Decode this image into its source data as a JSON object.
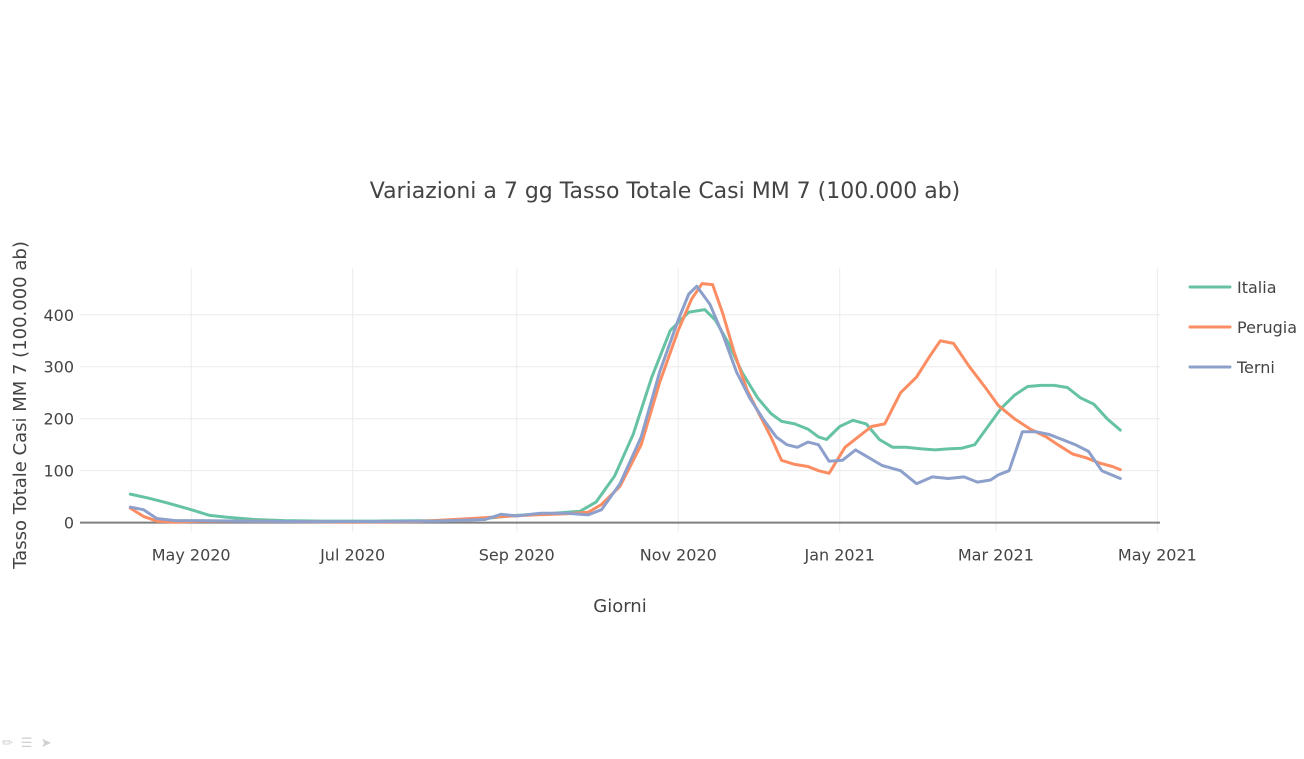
{
  "chart_data": {
    "type": "line",
    "title": "Variazioni a 7 gg Tasso Totale Casi MM 7 (100.000 ab)",
    "xlabel": "Giorni",
    "ylabel": "Tasso Totale Casi MM 7 (100.000 ab)",
    "xlim": [
      "2020-03-20",
      "2021-05-02"
    ],
    "ylim": [
      -18,
      490
    ],
    "grid": true,
    "legend_position": "right",
    "x_ticks": [
      {
        "date": "2020-05-01",
        "label": "May 2020"
      },
      {
        "date": "2020-07-01",
        "label": "Jul 2020"
      },
      {
        "date": "2020-09-01",
        "label": "Sep 2020"
      },
      {
        "date": "2020-11-01",
        "label": "Nov 2020"
      },
      {
        "date": "2021-01-01",
        "label": "Jan 2021"
      },
      {
        "date": "2021-03-01",
        "label": "Mar 2021"
      },
      {
        "date": "2021-05-01",
        "label": "May 2021"
      }
    ],
    "y_ticks": [
      {
        "value": 0,
        "label": "0"
      },
      {
        "value": 100,
        "label": "100"
      },
      {
        "value": 200,
        "label": "200"
      },
      {
        "value": 300,
        "label": "300"
      },
      {
        "value": 400,
        "label": "400"
      }
    ],
    "series": [
      {
        "name": "Italia",
        "color": "#66c2a5",
        "x": [
          "2020-04-08",
          "2020-04-15",
          "2020-04-22",
          "2020-05-01",
          "2020-05-08",
          "2020-05-15",
          "2020-05-25",
          "2020-06-05",
          "2020-06-20",
          "2020-07-10",
          "2020-08-01",
          "2020-08-20",
          "2020-09-01",
          "2020-09-15",
          "2020-09-25",
          "2020-10-01",
          "2020-10-08",
          "2020-10-15",
          "2020-10-22",
          "2020-10-29",
          "2020-11-05",
          "2020-11-11",
          "2020-11-15",
          "2020-11-20",
          "2020-11-25",
          "2020-12-01",
          "2020-12-06",
          "2020-12-10",
          "2020-12-15",
          "2020-12-20",
          "2020-12-24",
          "2020-12-27",
          "2021-01-01",
          "2021-01-06",
          "2021-01-11",
          "2021-01-16",
          "2021-01-21",
          "2021-01-26",
          "2021-02-01",
          "2021-02-06",
          "2021-02-11",
          "2021-02-16",
          "2021-02-21",
          "2021-02-26",
          "2021-03-03",
          "2021-03-08",
          "2021-03-13",
          "2021-03-18",
          "2021-03-23",
          "2021-03-28",
          "2021-04-02",
          "2021-04-07",
          "2021-04-12",
          "2021-04-17"
        ],
        "y": [
          55,
          47,
          38,
          25,
          14,
          10,
          6,
          4,
          3,
          3,
          4,
          8,
          14,
          18,
          22,
          40,
          90,
          170,
          280,
          370,
          405,
          410,
          390,
          345,
          290,
          240,
          210,
          195,
          190,
          180,
          165,
          160,
          185,
          197,
          190,
          160,
          145,
          145,
          142,
          140,
          142,
          143,
          150,
          185,
          220,
          245,
          262,
          264,
          264,
          260,
          240,
          228,
          200,
          178
        ]
      },
      {
        "name": "Perugia",
        "color": "#fc8d62",
        "x": [
          "2020-04-08",
          "2020-04-13",
          "2020-04-18",
          "2020-04-25",
          "2020-05-05",
          "2020-05-20",
          "2020-06-10",
          "2020-07-01",
          "2020-07-25",
          "2020-08-15",
          "2020-08-28",
          "2020-09-08",
          "2020-09-20",
          "2020-09-28",
          "2020-10-03",
          "2020-10-10",
          "2020-10-18",
          "2020-10-25",
          "2020-11-01",
          "2020-11-06",
          "2020-11-10",
          "2020-11-14",
          "2020-11-18",
          "2020-11-22",
          "2020-11-27",
          "2020-12-01",
          "2020-12-06",
          "2020-12-10",
          "2020-12-15",
          "2020-12-20",
          "2020-12-24",
          "2020-12-28",
          "2021-01-03",
          "2021-01-08",
          "2021-01-13",
          "2021-01-18",
          "2021-01-24",
          "2021-01-30",
          "2021-02-04",
          "2021-02-08",
          "2021-02-13",
          "2021-02-19",
          "2021-02-25",
          "2021-03-02",
          "2021-03-08",
          "2021-03-14",
          "2021-03-20",
          "2021-03-25",
          "2021-03-30",
          "2021-04-04",
          "2021-04-09",
          "2021-04-14",
          "2021-04-17"
        ],
        "y": [
          28,
          12,
          3,
          1,
          3,
          3,
          2,
          1,
          2,
          8,
          12,
          15,
          17,
          20,
          35,
          70,
          150,
          270,
          370,
          430,
          460,
          458,
          400,
          330,
          255,
          215,
          165,
          120,
          112,
          108,
          100,
          95,
          145,
          165,
          185,
          190,
          250,
          280,
          320,
          350,
          345,
          300,
          260,
          225,
          200,
          180,
          165,
          148,
          132,
          125,
          115,
          108,
          102
        ]
      },
      {
        "name": "Terni",
        "color": "#8da0cb",
        "x": [
          "2020-04-08",
          "2020-04-13",
          "2020-04-18",
          "2020-04-25",
          "2020-05-05",
          "2020-05-20",
          "2020-06-15",
          "2020-07-10",
          "2020-08-01",
          "2020-08-20",
          "2020-08-26",
          "2020-09-01",
          "2020-09-10",
          "2020-09-20",
          "2020-09-28",
          "2020-10-03",
          "2020-10-10",
          "2020-10-18",
          "2020-10-25",
          "2020-11-01",
          "2020-11-05",
          "2020-11-08",
          "2020-11-13",
          "2020-11-18",
          "2020-11-23",
          "2020-11-28",
          "2020-12-03",
          "2020-12-08",
          "2020-12-12",
          "2020-12-16",
          "2020-12-20",
          "2020-12-24",
          "2020-12-28",
          "2021-01-02",
          "2021-01-07",
          "2021-01-12",
          "2021-01-17",
          "2021-01-24",
          "2021-01-30",
          "2021-02-05",
          "2021-02-11",
          "2021-02-17",
          "2021-02-22",
          "2021-02-27",
          "2021-03-02",
          "2021-03-06",
          "2021-03-11",
          "2021-03-16",
          "2021-03-21",
          "2021-03-26",
          "2021-03-31",
          "2021-04-05",
          "2021-04-10",
          "2021-04-17"
        ],
        "y": [
          30,
          25,
          8,
          4,
          4,
          3,
          2,
          2,
          3,
          6,
          16,
          13,
          18,
          18,
          15,
          25,
          75,
          165,
          290,
          390,
          440,
          455,
          420,
          360,
          290,
          240,
          200,
          165,
          150,
          145,
          155,
          150,
          118,
          120,
          140,
          125,
          110,
          100,
          75,
          88,
          85,
          88,
          78,
          82,
          92,
          100,
          175,
          175,
          170,
          160,
          150,
          137,
          100,
          85
        ]
      }
    ]
  }
}
